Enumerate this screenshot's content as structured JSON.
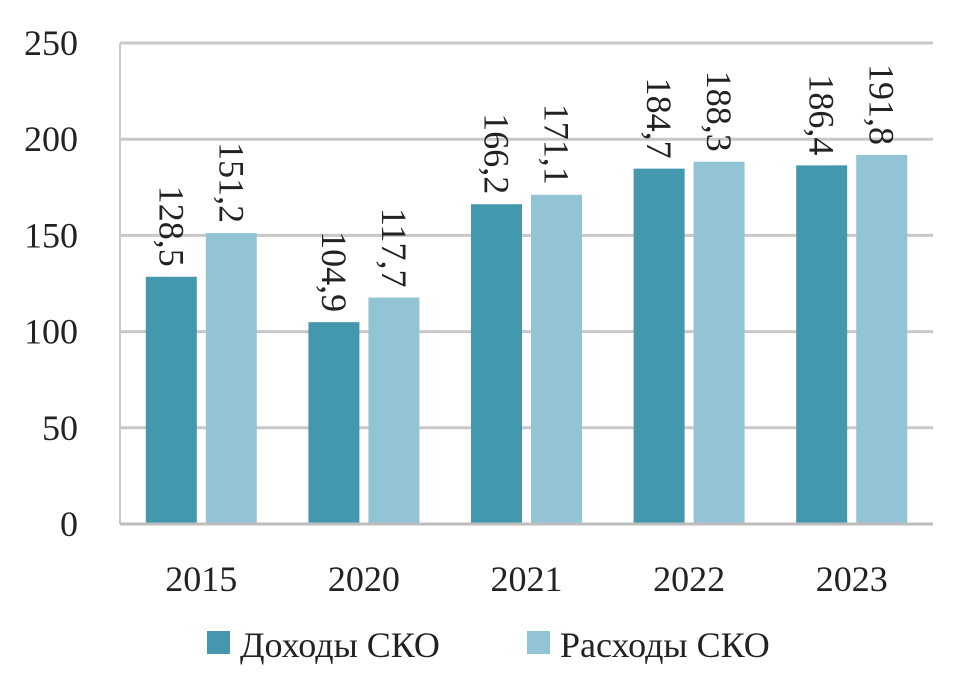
{
  "chart_data": {
    "type": "bar",
    "categories": [
      "2015",
      "2020",
      "2021",
      "2022",
      "2023"
    ],
    "series": [
      {
        "name": "Доходы СКО",
        "values": [
          128.5,
          104.9,
          166.2,
          184.7,
          186.4
        ],
        "labels": [
          "128,5",
          "104,9",
          "166,2",
          "184,7",
          "186,4"
        ],
        "color": "#4398AE"
      },
      {
        "name": "Расходы СКО",
        "values": [
          151.2,
          117.7,
          171.1,
          188.3,
          191.8
        ],
        "labels": [
          "151,2",
          "117,7",
          "171,1",
          "188,3",
          "191,8"
        ],
        "color": "#93C4D6"
      }
    ],
    "ylim": [
      0,
      250
    ],
    "yticks": [
      "0",
      "50",
      "100",
      "150",
      "200",
      "250"
    ],
    "grid": true,
    "legend": "bottom",
    "data_label_orientation": "vertical"
  }
}
